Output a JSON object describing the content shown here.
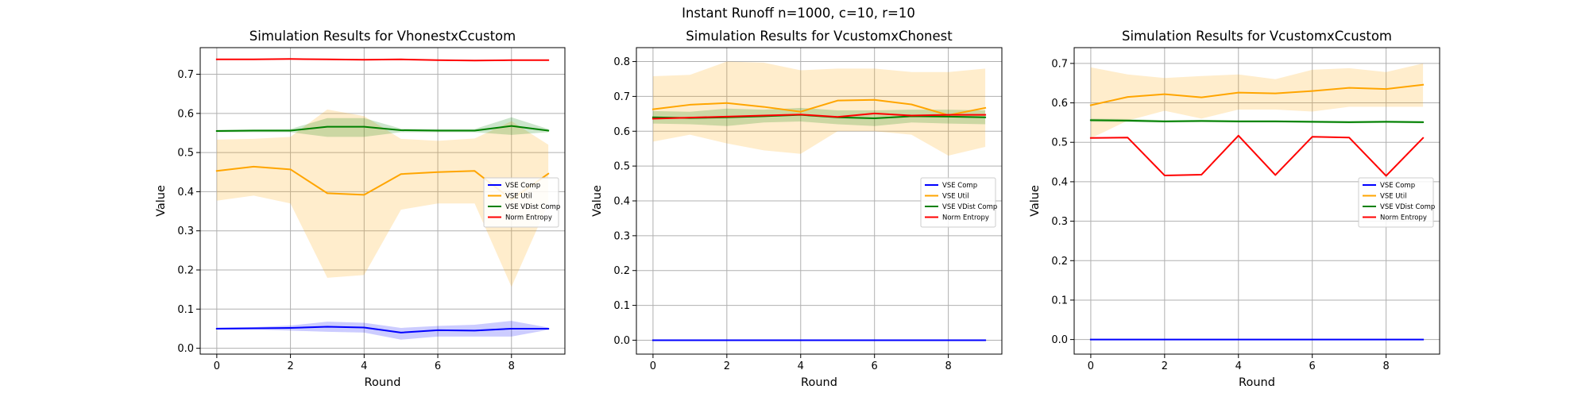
{
  "figure": {
    "suptitle": "Instant Runoff n=1000, c=10, r=10"
  },
  "chart_data": [
    {
      "type": "line",
      "title": "Simulation Results for VhonestxCcustom",
      "xlabel": "Round",
      "ylabel": "Value",
      "xlim": [
        -0.45,
        9.45
      ],
      "ylim": [
        -0.015,
        0.768
      ],
      "xticks": [
        "0",
        "2",
        "4",
        "6",
        "8"
      ],
      "xtick_values": [
        0,
        2,
        4,
        6,
        8
      ],
      "yticks": [
        "0.0",
        "0.1",
        "0.2",
        "0.3",
        "0.4",
        "0.5",
        "0.6",
        "0.7"
      ],
      "ytick_values": [
        0.0,
        0.1,
        0.2,
        0.3,
        0.4,
        0.5,
        0.6,
        0.7
      ],
      "grid": true,
      "legend_position": "center-right",
      "x": [
        0,
        1,
        2,
        3,
        4,
        5,
        6,
        7,
        8,
        9
      ],
      "series": [
        {
          "name": "VSE Comp",
          "color": "#0000ff",
          "values": [
            0.05,
            0.051,
            0.052,
            0.055,
            0.053,
            0.04,
            0.046,
            0.045,
            0.05,
            0.05
          ],
          "lower": [
            0.048,
            0.048,
            0.045,
            0.042,
            0.04,
            0.022,
            0.03,
            0.03,
            0.03,
            0.047
          ],
          "upper": [
            0.053,
            0.054,
            0.058,
            0.068,
            0.065,
            0.052,
            0.057,
            0.06,
            0.07,
            0.053
          ]
        },
        {
          "name": "VSE Util",
          "color": "#ffa500",
          "values": [
            0.453,
            0.464,
            0.457,
            0.396,
            0.392,
            0.445,
            0.45,
            0.453,
            0.38,
            0.446
          ],
          "lower": [
            0.377,
            0.39,
            0.37,
            0.18,
            0.187,
            0.354,
            0.37,
            0.37,
            0.157,
            0.37
          ],
          "upper": [
            0.533,
            0.535,
            0.54,
            0.61,
            0.593,
            0.535,
            0.53,
            0.536,
            0.58,
            0.52
          ]
        },
        {
          "name": "VSE VDist Comp",
          "color": "#008000",
          "values": [
            0.555,
            0.556,
            0.556,
            0.566,
            0.566,
            0.557,
            0.556,
            0.556,
            0.568,
            0.556
          ],
          "lower": [
            0.552,
            0.552,
            0.552,
            0.54,
            0.54,
            0.552,
            0.552,
            0.552,
            0.545,
            0.552
          ],
          "upper": [
            0.558,
            0.559,
            0.56,
            0.588,
            0.588,
            0.561,
            0.56,
            0.56,
            0.59,
            0.56
          ]
        },
        {
          "name": "Norm Entropy",
          "color": "#ff0000",
          "values": [
            0.738,
            0.738,
            0.739,
            0.738,
            0.737,
            0.738,
            0.736,
            0.735,
            0.736,
            0.736
          ]
        }
      ]
    },
    {
      "type": "line",
      "title": "Simulation Results for VcustomxChonest",
      "xlabel": "Round",
      "ylabel": "Value",
      "xlim": [
        -0.45,
        9.45
      ],
      "ylim": [
        -0.04,
        0.84
      ],
      "xticks": [
        "0",
        "2",
        "4",
        "6",
        "8"
      ],
      "xtick_values": [
        0,
        2,
        4,
        6,
        8
      ],
      "yticks": [
        "0.0",
        "0.1",
        "0.2",
        "0.3",
        "0.4",
        "0.5",
        "0.6",
        "0.7",
        "0.8"
      ],
      "ytick_values": [
        0.0,
        0.1,
        0.2,
        0.3,
        0.4,
        0.5,
        0.6,
        0.7,
        0.8
      ],
      "grid": true,
      "legend_position": "center-right",
      "x": [
        0,
        1,
        2,
        3,
        4,
        5,
        6,
        7,
        8,
        9
      ],
      "series": [
        {
          "name": "VSE Comp",
          "color": "#0000ff",
          "values": [
            0,
            0,
            0,
            0,
            0,
            0,
            0,
            0,
            0,
            0
          ]
        },
        {
          "name": "VSE Util",
          "color": "#ffa500",
          "values": [
            0.663,
            0.676,
            0.681,
            0.67,
            0.656,
            0.688,
            0.69,
            0.677,
            0.646,
            0.667
          ],
          "lower": [
            0.57,
            0.59,
            0.565,
            0.545,
            0.535,
            0.6,
            0.6,
            0.59,
            0.53,
            0.555
          ],
          "upper": [
            0.758,
            0.762,
            0.8,
            0.797,
            0.775,
            0.78,
            0.78,
            0.77,
            0.77,
            0.78
          ]
        },
        {
          "name": "VSE VDist Comp",
          "color": "#008000",
          "values": [
            0.64,
            0.638,
            0.64,
            0.643,
            0.647,
            0.64,
            0.637,
            0.643,
            0.642,
            0.64
          ],
          "lower": [
            0.622,
            0.62,
            0.615,
            0.625,
            0.628,
            0.62,
            0.615,
            0.625,
            0.622,
            0.62
          ],
          "upper": [
            0.658,
            0.656,
            0.665,
            0.662,
            0.667,
            0.66,
            0.66,
            0.662,
            0.662,
            0.66
          ]
        },
        {
          "name": "Norm Entropy",
          "color": "#ff0000",
          "values": [
            0.636,
            0.639,
            0.642,
            0.645,
            0.648,
            0.641,
            0.651,
            0.645,
            0.647,
            0.647
          ]
        }
      ]
    },
    {
      "type": "line",
      "title": "Simulation Results for VcustomxCcustom",
      "xlabel": "Round",
      "ylabel": "Value",
      "xlim": [
        -0.45,
        9.45
      ],
      "ylim": [
        -0.037,
        0.74
      ],
      "xticks": [
        "0",
        "2",
        "4",
        "6",
        "8"
      ],
      "xtick_values": [
        0,
        2,
        4,
        6,
        8
      ],
      "yticks": [
        "0.0",
        "0.1",
        "0.2",
        "0.3",
        "0.4",
        "0.5",
        "0.6",
        "0.7"
      ],
      "ytick_values": [
        0.0,
        0.1,
        0.2,
        0.3,
        0.4,
        0.5,
        0.6,
        0.7
      ],
      "grid": true,
      "legend_position": "center-right",
      "x": [
        0,
        1,
        2,
        3,
        4,
        5,
        6,
        7,
        8,
        9
      ],
      "series": [
        {
          "name": "VSE Comp",
          "color": "#0000ff",
          "values": [
            0,
            0,
            0,
            0,
            0,
            0,
            0,
            0,
            0,
            0
          ]
        },
        {
          "name": "VSE Util",
          "color": "#ffa500",
          "values": [
            0.594,
            0.615,
            0.622,
            0.614,
            0.626,
            0.624,
            0.63,
            0.638,
            0.635,
            0.646
          ],
          "lower": [
            0.51,
            0.555,
            0.58,
            0.56,
            0.583,
            0.583,
            0.578,
            0.59,
            0.59,
            0.59
          ],
          "upper": [
            0.69,
            0.672,
            0.663,
            0.668,
            0.672,
            0.66,
            0.684,
            0.688,
            0.678,
            0.7
          ]
        },
        {
          "name": "VSE VDist Comp",
          "color": "#008000",
          "values": [
            0.556,
            0.555,
            0.553,
            0.554,
            0.553,
            0.553,
            0.552,
            0.551,
            0.552,
            0.551
          ],
          "lower": [
            0.552,
            0.551,
            0.55,
            0.551,
            0.55,
            0.55,
            0.549,
            0.548,
            0.549,
            0.548
          ],
          "upper": [
            0.56,
            0.559,
            0.556,
            0.557,
            0.556,
            0.556,
            0.555,
            0.554,
            0.555,
            0.554
          ]
        },
        {
          "name": "Norm Entropy",
          "color": "#ff0000",
          "values": [
            0.511,
            0.512,
            0.416,
            0.418,
            0.517,
            0.417,
            0.514,
            0.512,
            0.415,
            0.511
          ]
        }
      ]
    }
  ]
}
